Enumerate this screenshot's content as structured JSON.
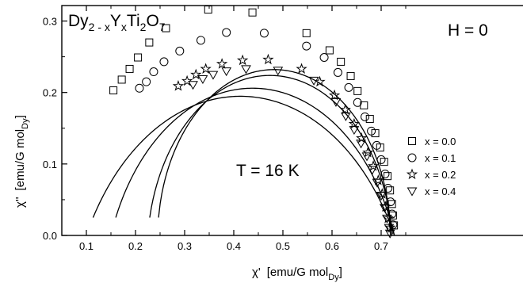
{
  "chart_data": {
    "type": "scatter",
    "title": "",
    "xlabel_main": "χ'",
    "xlabel_unit": "[emu/G mol",
    "xlabel_sub": "Dy",
    "xlabel_close": "]",
    "ylabel_main": "χ''",
    "ylabel_unit": "[emu/G mol",
    "ylabel_sub": "Dy",
    "ylabel_close": "]",
    "xlim": [
      0.05,
      0.75
    ],
    "ylim": [
      0.0,
      0.34
    ],
    "xticks": [
      "0.1",
      "0.2",
      "0.3",
      "0.4",
      "0.5",
      "0.6",
      "0.7"
    ],
    "yticks": [
      "0.0",
      "0.1",
      "0.2",
      "0.3"
    ],
    "grid": false,
    "legend_position": "right",
    "annotations": {
      "formula": {
        "Dy": "Dy",
        "s1": "2 - x",
        "Y": "Y",
        "s2": "x",
        "Ti": "Ti",
        "s3": "2",
        "O": "O",
        "s4": "7"
      },
      "field": "H = 0",
      "temperature": "T = 16 K"
    },
    "series": [
      {
        "name": "x = 0.0",
        "marker": "square",
        "points": [
          [
            0.155,
            0.203
          ],
          [
            0.172,
            0.218
          ],
          [
            0.188,
            0.233
          ],
          [
            0.205,
            0.249
          ],
          [
            0.228,
            0.27
          ],
          [
            0.262,
            0.29
          ],
          [
            0.348,
            0.316
          ],
          [
            0.438,
            0.312
          ],
          [
            0.548,
            0.283
          ],
          [
            0.595,
            0.259
          ],
          [
            0.618,
            0.243
          ],
          [
            0.638,
            0.223
          ],
          [
            0.652,
            0.202
          ],
          [
            0.665,
            0.182
          ],
          [
            0.677,
            0.163
          ],
          [
            0.688,
            0.143
          ],
          [
            0.698,
            0.123
          ],
          [
            0.706,
            0.103
          ],
          [
            0.713,
            0.083
          ],
          [
            0.718,
            0.063
          ],
          [
            0.722,
            0.044
          ],
          [
            0.724,
            0.028
          ],
          [
            0.726,
            0.014
          ]
        ],
        "fit": {
          "x0": 0.1,
          "x1": 0.727,
          "yc": -0.155
        }
      },
      {
        "name": "x = 0.1",
        "marker": "circle",
        "points": [
          [
            0.208,
            0.206
          ],
          [
            0.222,
            0.215
          ],
          [
            0.237,
            0.229
          ],
          [
            0.258,
            0.243
          ],
          [
            0.29,
            0.258
          ],
          [
            0.333,
            0.273
          ],
          [
            0.385,
            0.284
          ],
          [
            0.462,
            0.283
          ],
          [
            0.548,
            0.265
          ],
          [
            0.584,
            0.249
          ],
          [
            0.612,
            0.228
          ],
          [
            0.634,
            0.207
          ],
          [
            0.652,
            0.186
          ],
          [
            0.667,
            0.166
          ],
          [
            0.68,
            0.146
          ],
          [
            0.691,
            0.126
          ],
          [
            0.7,
            0.106
          ],
          [
            0.708,
            0.086
          ],
          [
            0.714,
            0.066
          ],
          [
            0.719,
            0.047
          ],
          [
            0.722,
            0.03
          ],
          [
            0.724,
            0.015
          ]
        ],
        "fit": {
          "x0": 0.15,
          "x1": 0.727,
          "yc": -0.099
        }
      },
      {
        "name": "x = 0.2",
        "marker": "star",
        "points": [
          [
            0.287,
            0.209
          ],
          [
            0.305,
            0.216
          ],
          [
            0.323,
            0.225
          ],
          [
            0.343,
            0.233
          ],
          [
            0.376,
            0.24
          ],
          [
            0.418,
            0.245
          ],
          [
            0.47,
            0.246
          ],
          [
            0.538,
            0.233
          ],
          [
            0.575,
            0.215
          ],
          [
            0.605,
            0.196
          ],
          [
            0.627,
            0.176
          ],
          [
            0.645,
            0.156
          ],
          [
            0.66,
            0.136
          ],
          [
            0.673,
            0.116
          ],
          [
            0.684,
            0.097
          ],
          [
            0.694,
            0.077
          ],
          [
            0.702,
            0.058
          ],
          [
            0.709,
            0.04
          ],
          [
            0.714,
            0.024
          ],
          [
            0.718,
            0.011
          ]
        ],
        "fit": {
          "x0": 0.225,
          "x1": 0.722,
          "yc": -0.026
        }
      },
      {
        "name": "x = 0.4",
        "marker": "triangle-down",
        "points": [
          [
            0.317,
            0.211
          ],
          [
            0.337,
            0.219
          ],
          [
            0.358,
            0.225
          ],
          [
            0.385,
            0.23
          ],
          [
            0.425,
            0.233
          ],
          [
            0.49,
            0.231
          ],
          [
            0.563,
            0.217
          ],
          [
            0.608,
            0.187
          ],
          [
            0.628,
            0.167
          ],
          [
            0.645,
            0.148
          ],
          [
            0.659,
            0.129
          ],
          [
            0.671,
            0.111
          ],
          [
            0.682,
            0.092
          ],
          [
            0.692,
            0.074
          ],
          [
            0.7,
            0.056
          ],
          [
            0.707,
            0.039
          ],
          [
            0.712,
            0.024
          ],
          [
            0.716,
            0.011
          ],
          [
            0.718,
            0.003
          ]
        ],
        "fit": {
          "x0": 0.245,
          "x1": 0.719,
          "yc": -0.005
        }
      }
    ]
  }
}
